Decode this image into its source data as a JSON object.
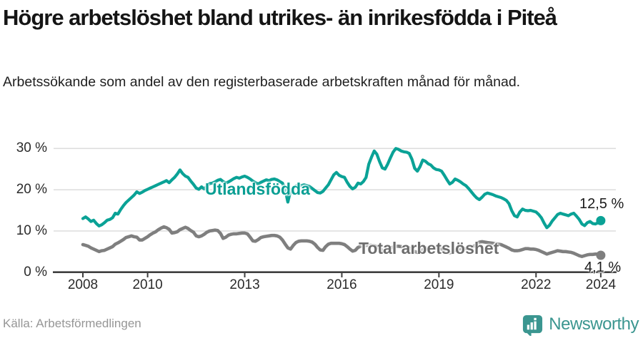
{
  "header": {
    "title": "Högre arbetslöshet bland utrikes- än inrikesfödda i Piteå",
    "subtitle": "Arbetssökande som andel av den registerbaserade arbetskraften månad för månad."
  },
  "chart_data": {
    "type": "line",
    "title": "Högre arbetslöshet bland utrikes- än inrikesfödda i Piteå",
    "subtitle": "Arbetssökande som andel av den registerbaserade arbetskraften månad för månad.",
    "unit": "%",
    "x_start": "2008-01",
    "x_end": "2024-01",
    "x_interval": "monthly",
    "grid": "horizontal",
    "legend_position": "inline-on-lines",
    "ylim": [
      0,
      32
    ],
    "yticks": [
      {
        "value": 0,
        "label": "0 %"
      },
      {
        "value": 10,
        "label": "10 %"
      },
      {
        "value": 20,
        "label": "20 %"
      },
      {
        "value": 30,
        "label": "30 %"
      }
    ],
    "xticks": [
      {
        "year": 2008,
        "label": "2008"
      },
      {
        "year": 2010,
        "label": "2010"
      },
      {
        "year": 2013,
        "label": "2013"
      },
      {
        "year": 2016,
        "label": "2016"
      },
      {
        "year": 2019,
        "label": "2019"
      },
      {
        "year": 2022,
        "label": "2022"
      },
      {
        "year": 2024,
        "label": "2024"
      }
    ],
    "series": [
      {
        "name": "Utlandsfödda",
        "color": "#0aa296",
        "end_label": "12,5 %",
        "end_value": 12.5,
        "values": [
          13.0,
          13.4,
          12.9,
          12.3,
          12.6,
          11.8,
          11.2,
          11.5,
          12.0,
          12.6,
          12.8,
          13.2,
          14.3,
          14.1,
          15.2,
          16.1,
          16.9,
          17.5,
          18.1,
          18.7,
          19.5,
          19.1,
          19.4,
          19.8,
          20.1,
          20.4,
          20.7,
          21.0,
          21.3,
          21.6,
          21.9,
          22.2,
          21.7,
          22.4,
          23.0,
          23.8,
          24.8,
          23.9,
          23.3,
          23.0,
          22.1,
          21.3,
          20.4,
          20.1,
          20.7,
          20.2,
          20.9,
          21.5,
          21.6,
          21.9,
          22.3,
          22.5,
          22.0,
          21.6,
          21.9,
          22.3,
          22.7,
          23.0,
          22.8,
          23.1,
          23.3,
          23.0,
          22.6,
          22.1,
          21.7,
          21.4,
          21.8,
          22.1,
          22.4,
          22.2,
          22.5,
          22.6,
          22.4,
          22.0,
          21.6,
          20.0,
          17.0,
          19.8,
          20.5,
          20.9,
          21.2,
          21.0,
          21.2,
          21.0,
          20.8,
          20.3,
          19.8,
          19.3,
          19.2,
          19.6,
          20.4,
          21.2,
          22.4,
          23.6,
          24.2,
          23.5,
          23.2,
          23.0,
          21.8,
          20.8,
          20.2,
          20.6,
          21.6,
          21.4,
          22.0,
          23.0,
          26.2,
          27.9,
          29.4,
          28.6,
          26.8,
          25.3,
          25.0,
          26.2,
          27.7,
          29.1,
          30.0,
          29.8,
          29.4,
          29.2,
          29.1,
          28.8,
          27.4,
          25.2,
          24.5,
          25.6,
          27.2,
          26.9,
          26.3,
          26.0,
          25.3,
          24.9,
          24.8,
          24.5,
          23.5,
          22.4,
          21.4,
          21.8,
          22.6,
          22.3,
          21.9,
          21.4,
          21.0,
          20.3,
          19.5,
          18.7,
          18.0,
          17.6,
          18.2,
          18.9,
          19.2,
          19.0,
          18.8,
          18.5,
          18.3,
          18.1,
          17.8,
          17.4,
          16.6,
          14.9,
          13.7,
          13.4,
          14.6,
          15.3,
          15.0,
          14.9,
          15.0,
          14.8,
          14.6,
          14.0,
          13.2,
          11.9,
          10.8,
          11.4,
          12.4,
          13.2,
          14.0,
          14.3,
          14.1,
          13.9,
          13.7,
          14.1,
          14.3,
          13.6,
          12.8,
          11.7,
          11.3,
          12.0,
          12.3,
          11.8,
          11.7,
          12.0,
          12.5
        ]
      },
      {
        "name": "Total arbetslöshet",
        "color": "#7f7f7f",
        "end_label": "4,1 %",
        "end_value": 4.1,
        "values": [
          6.7,
          6.5,
          6.3,
          5.9,
          5.6,
          5.3,
          5.0,
          5.2,
          5.3,
          5.6,
          5.9,
          6.2,
          6.8,
          7.1,
          7.5,
          7.9,
          8.4,
          8.6,
          8.8,
          8.6,
          8.5,
          7.8,
          7.8,
          8.2,
          8.6,
          9.1,
          9.5,
          9.8,
          10.3,
          10.7,
          11.0,
          10.8,
          10.4,
          9.5,
          9.6,
          9.8,
          10.3,
          10.6,
          10.9,
          10.6,
          10.1,
          9.7,
          8.8,
          8.6,
          8.8,
          9.2,
          9.7,
          10.0,
          10.1,
          10.2,
          10.1,
          9.4,
          8.2,
          8.5,
          9.0,
          9.2,
          9.3,
          9.3,
          9.4,
          9.5,
          9.5,
          9.3,
          8.5,
          7.6,
          7.5,
          7.9,
          8.4,
          8.6,
          8.7,
          8.8,
          8.9,
          8.9,
          8.8,
          8.5,
          7.8,
          6.8,
          5.9,
          5.6,
          6.5,
          7.2,
          7.5,
          7.6,
          7.6,
          7.6,
          7.5,
          7.3,
          6.8,
          6.0,
          5.4,
          5.3,
          6.2,
          6.8,
          7.0,
          7.0,
          7.0,
          7.0,
          6.9,
          6.7,
          6.2,
          5.6,
          5.1,
          5.3,
          6.0,
          6.3,
          6.5,
          6.5,
          6.5,
          6.5,
          6.4,
          6.2,
          5.8,
          5.3,
          5.0,
          5.2,
          5.8,
          6.1,
          6.3,
          6.3,
          6.2,
          6.2,
          6.1,
          5.9,
          5.5,
          5.0,
          4.8,
          5.0,
          5.5,
          5.8,
          5.9,
          5.9,
          5.9,
          5.8,
          5.8,
          5.6,
          5.3,
          4.9,
          4.7,
          4.9,
          5.4,
          5.6,
          5.7,
          5.7,
          5.7,
          5.8,
          6.0,
          6.3,
          6.8,
          7.3,
          7.4,
          7.3,
          7.2,
          7.1,
          7.0,
          6.9,
          6.8,
          6.7,
          6.4,
          6.1,
          5.8,
          5.4,
          5.2,
          5.2,
          5.3,
          5.5,
          5.7,
          5.7,
          5.6,
          5.6,
          5.5,
          5.3,
          5.0,
          4.7,
          4.4,
          4.6,
          4.8,
          5.0,
          5.2,
          5.1,
          5.0,
          5.0,
          4.9,
          4.8,
          4.6,
          4.3,
          4.0,
          3.8,
          4.0,
          4.2,
          4.3,
          4.3,
          4.4,
          4.4,
          4.1
        ]
      }
    ]
  },
  "footer": {
    "source": "Källa: Arbetsförmedlingen",
    "brand": "Newsworthy"
  },
  "colors": {
    "accent_teal": "#0aa296",
    "line_gray": "#7f7f7f",
    "brand_teal": "#3b9690",
    "gridline": "#d9d9d9",
    "axis": "#3f3f3f"
  }
}
